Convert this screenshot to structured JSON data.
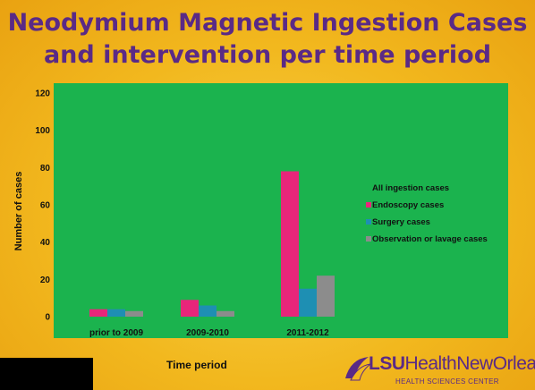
{
  "title": {
    "line1": "Neodymium Magnetic Ingestion Cases",
    "line2": "and intervention per time period"
  },
  "logo": {
    "lsu": "LSU",
    "health": "Health",
    "city": "NewOrleans",
    "subtitle": "HEALTH SCIENCES CENTER"
  },
  "colors": {
    "background": "#f2b81e",
    "plot_area": "#1bb34e",
    "title": "#5a2a86"
  },
  "chart_data": {
    "type": "bar",
    "title": "Neodymium Magnetic Ingestion Cases and intervention per time period",
    "xlabel": "Time period",
    "ylabel": "Number of cases",
    "ylim": [
      0,
      120
    ],
    "yticks": [
      0,
      20,
      40,
      60,
      80,
      100,
      120
    ],
    "categories": [
      "prior to 2009",
      "2009-2010",
      "2011-2012"
    ],
    "legend_placement": "right",
    "series": [
      {
        "name": "All ingestion cases",
        "color": "#1bb34e",
        "values": [
          0,
          0,
          0
        ]
      },
      {
        "name": "Endoscopy cases",
        "color": "#e8267a",
        "values": [
          4,
          9,
          78
        ]
      },
      {
        "name": "Surgery cases",
        "color": "#1e8fb3",
        "values": [
          4,
          6,
          15
        ]
      },
      {
        "name": "Observation or lavage cases",
        "color": "#8c8c8c",
        "values": [
          3,
          3,
          22
        ]
      }
    ]
  }
}
